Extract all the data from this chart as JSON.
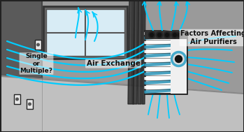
{
  "fig_width": 3.49,
  "fig_height": 1.89,
  "dpi": 100,
  "bg_wall_color": "#909090",
  "bg_wall_color2": "#808080",
  "left_wall_color": "#707070",
  "floor_color": "#b5b5b5",
  "back_wall_color": "#999999",
  "window_frame_color": "#555555",
  "window_glass_color": "#d8ecf5",
  "curtain_dark": "#3a3a3a",
  "curtain_mid": "#555555",
  "purifier_white": "#f5f5f5",
  "purifier_stripe1": "#3399bb",
  "purifier_stripe2": "#ffffff",
  "purifier_ring_outer": "#44aacc",
  "purifier_ring_inner": "#111111",
  "purifier_top_dark": "#333333",
  "air_flow_color": "#00ccff",
  "text_color": "#111111",
  "label_air_exchange": "Air Exchange",
  "label_factors": "Factors Affecting\nAir Purifiers",
  "label_single": "Single\nor\nMultiple?",
  "border_color": "#222222"
}
